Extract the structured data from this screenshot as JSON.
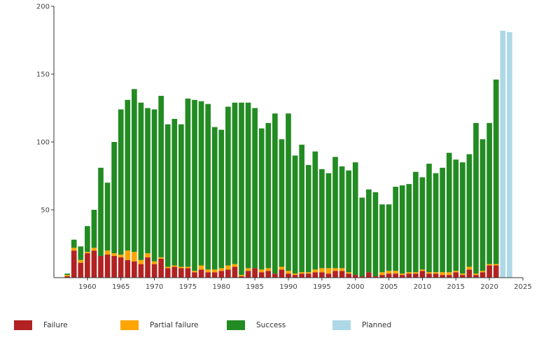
{
  "chart_data": {
    "type": "bar",
    "stacked": true,
    "title": "",
    "xlabel": "",
    "ylabel": "",
    "xlim": [
      1955,
      2025
    ],
    "ylim": [
      0,
      200
    ],
    "x_ticks": [
      1960,
      1965,
      1970,
      1975,
      1980,
      1985,
      1990,
      1995,
      2000,
      2005,
      2010,
      2015,
      2020,
      2025
    ],
    "y_ticks": [
      50,
      100,
      150,
      200
    ],
    "grid": false,
    "legend_position": "bottom",
    "colors": {
      "failure": "#b22222",
      "partial": "#ffa500",
      "success": "#228b22",
      "planned": "#add8e6"
    },
    "categories": [
      1957,
      1958,
      1959,
      1960,
      1961,
      1962,
      1963,
      1964,
      1965,
      1966,
      1967,
      1968,
      1969,
      1970,
      1971,
      1972,
      1973,
      1974,
      1975,
      1976,
      1977,
      1978,
      1979,
      1980,
      1981,
      1982,
      1983,
      1984,
      1985,
      1986,
      1987,
      1988,
      1989,
      1990,
      1991,
      1992,
      1993,
      1994,
      1995,
      1996,
      1997,
      1998,
      1999,
      2000,
      2001,
      2002,
      2003,
      2004,
      2005,
      2006,
      2007,
      2008,
      2009,
      2010,
      2011,
      2012,
      2013,
      2014,
      2015,
      2016,
      2017,
      2018,
      2019,
      2020,
      2021,
      2022,
      2023
    ],
    "series": [
      {
        "name": "Failure",
        "values": [
          1,
          20,
          11,
          18,
          20,
          16,
          17,
          16,
          15,
          13,
          12,
          10,
          15,
          10,
          14,
          7,
          8,
          7,
          7,
          4,
          6,
          4,
          4,
          5,
          6,
          8,
          1,
          5,
          7,
          4,
          5,
          3,
          6,
          3,
          2,
          3,
          3,
          4,
          4,
          3,
          5,
          5,
          3,
          2,
          1,
          4,
          1,
          2,
          3,
          3,
          2,
          3,
          3,
          5,
          3,
          3,
          2,
          2,
          4,
          2,
          6,
          2,
          4,
          9,
          9,
          0,
          0
        ]
      },
      {
        "name": "Partial failure",
        "values": [
          1,
          2,
          2,
          1,
          2,
          0,
          3,
          2,
          2,
          7,
          7,
          3,
          3,
          2,
          1,
          1,
          1,
          1,
          1,
          1,
          3,
          2,
          2,
          2,
          3,
          2,
          1,
          2,
          0,
          2,
          2,
          0,
          2,
          2,
          1,
          1,
          1,
          2,
          3,
          4,
          2,
          2,
          1,
          0,
          0,
          0,
          0,
          2,
          2,
          2,
          1,
          1,
          1,
          1,
          1,
          1,
          2,
          2,
          1,
          1,
          2,
          1,
          1,
          1,
          1,
          0,
          0
        ]
      },
      {
        "name": "Success",
        "values": [
          1,
          6,
          10,
          19,
          28,
          65,
          50,
          82,
          107,
          111,
          120,
          116,
          107,
          112,
          119,
          105,
          108,
          105,
          124,
          126,
          121,
          122,
          105,
          102,
          117,
          119,
          127,
          122,
          118,
          104,
          107,
          118,
          94,
          116,
          87,
          94,
          79,
          87,
          73,
          70,
          82,
          75,
          75,
          83,
          58,
          61,
          62,
          50,
          49,
          62,
          65,
          65,
          74,
          68,
          80,
          73,
          77,
          88,
          82,
          82,
          83,
          111,
          97,
          104,
          136,
          0,
          0
        ]
      },
      {
        "name": "Planned",
        "values": [
          0,
          0,
          0,
          0,
          0,
          0,
          0,
          0,
          0,
          0,
          0,
          0,
          0,
          0,
          0,
          0,
          0,
          0,
          0,
          0,
          0,
          0,
          0,
          0,
          0,
          0,
          0,
          0,
          0,
          0,
          0,
          0,
          0,
          0,
          0,
          0,
          0,
          0,
          0,
          0,
          0,
          0,
          0,
          0,
          0,
          0,
          0,
          0,
          0,
          0,
          0,
          0,
          0,
          0,
          0,
          0,
          0,
          0,
          0,
          0,
          0,
          0,
          0,
          0,
          0,
          182,
          181
        ]
      }
    ]
  },
  "legend": {
    "failure_label": "Failure",
    "partial_label": "Partial failure",
    "success_label": "Success",
    "planned_label": "Planned"
  }
}
